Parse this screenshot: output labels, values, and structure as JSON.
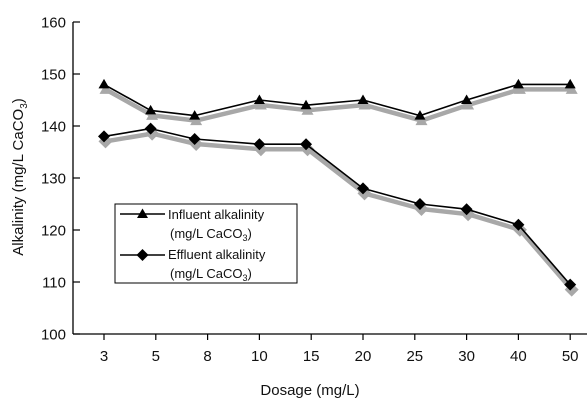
{
  "chart_data": {
    "type": "line",
    "xlabel": "Dosage (mg/L)",
    "ylabel_main": "Alkalinity (mg/L CaCO",
    "ylabel_sub": "3",
    "ylabel_close": ")",
    "ylim": [
      100,
      160
    ],
    "yticks": [
      100,
      110,
      120,
      130,
      140,
      150,
      160
    ],
    "categories": [
      "3",
      "5",
      "8",
      "10",
      "15",
      "20",
      "25",
      "30",
      "40",
      "50"
    ],
    "grid": false,
    "legend_position": "center-left",
    "series": [
      {
        "name_line1": "Influent alkalinity",
        "name_line2_main": "(mg/L CaCO",
        "name_line2_sub": "3",
        "name_line2_close": ")",
        "marker": "triangle",
        "color": "#000000",
        "shadow_color": "#a8a8a8",
        "x_index": [
          0.0,
          0.9,
          1.75,
          3.0,
          3.9,
          5.0,
          6.1,
          7.0,
          8.0,
          9.0
        ],
        "values": [
          148,
          143,
          142,
          145,
          144,
          145,
          142,
          145,
          148,
          148
        ]
      },
      {
        "name_line1": "Effluent alkalinity",
        "name_line2_main": "(mg/L CaCO",
        "name_line2_sub": "3",
        "name_line2_close": ")",
        "marker": "diamond",
        "color": "#000000",
        "shadow_color": "#a8a8a8",
        "x_index": [
          0.0,
          0.9,
          1.75,
          3.0,
          3.9,
          5.0,
          6.1,
          7.0,
          8.0,
          9.0
        ],
        "values": [
          138,
          139.5,
          137.5,
          136.5,
          136.5,
          128,
          125,
          124,
          121,
          109.5
        ]
      }
    ]
  }
}
